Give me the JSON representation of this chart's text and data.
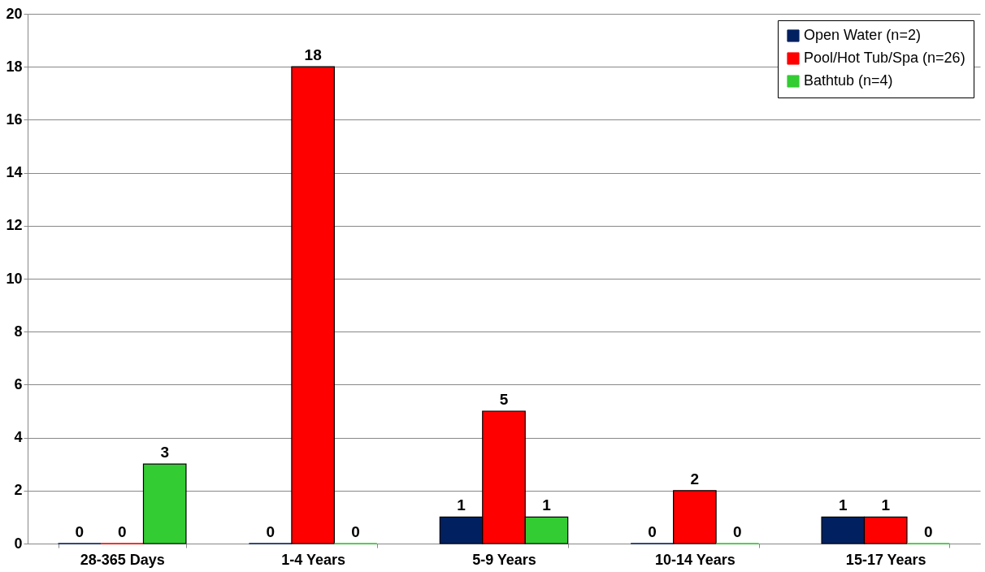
{
  "chart_data": {
    "type": "bar",
    "categories": [
      "28-365 Days",
      "1-4 Years",
      "5-9 Years",
      "10-14 Years",
      "15-17 Years"
    ],
    "series": [
      {
        "name": "Open Water (n=2)",
        "color": "#002060",
        "values": [
          0,
          0,
          1,
          0,
          1
        ]
      },
      {
        "name": "Pool/Hot Tub/Spa (n=26)",
        "color": "#ff0000",
        "values": [
          0,
          18,
          5,
          2,
          1
        ]
      },
      {
        "name": "Bathtub (n=4)",
        "color": "#33cc33",
        "values": [
          3,
          0,
          1,
          0,
          0
        ]
      }
    ],
    "ylim": [
      0,
      20
    ],
    "yticks": [
      0,
      2,
      4,
      6,
      8,
      10,
      12,
      14,
      16,
      18,
      20
    ],
    "grid": "y",
    "legend": "top right",
    "data_labels": true
  }
}
